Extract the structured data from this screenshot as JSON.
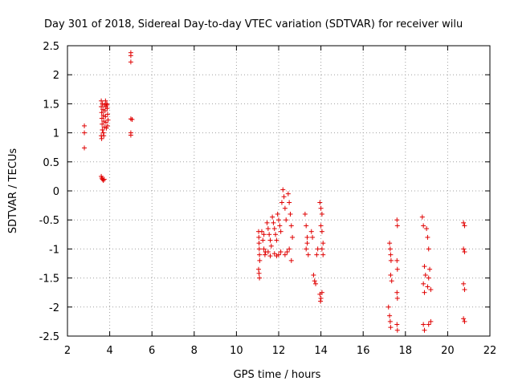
{
  "chart_data": {
    "type": "scatter",
    "title": "Day 301 of 2018, Sidereal Day-to-day VTEC variation (SDTVAR) for receiver wilu",
    "xlabel": "GPS time / hours",
    "ylabel": "SDTVAR / TECUs",
    "xlim": [
      2,
      22
    ],
    "ylim": [
      -2.5,
      2.5
    ],
    "grid": true,
    "marker": "plus",
    "color": "#e00000",
    "x_ticks": [
      2,
      4,
      6,
      8,
      10,
      12,
      14,
      16,
      18,
      20,
      22
    ],
    "y_ticks": [
      -2.5,
      -2,
      -1.5,
      -1,
      -0.5,
      0,
      0.5,
      1,
      1.5,
      2,
      2.5
    ],
    "x_tick_labels": [
      "2",
      "4",
      "6",
      "8",
      "10",
      "12",
      "14",
      "16",
      "18",
      "20",
      "22"
    ],
    "y_tick_labels": [
      "-2.5",
      "-2",
      "-1.5",
      "-1",
      "-0.5",
      "0",
      "0.5",
      "1",
      "1.5",
      "2",
      "2.5"
    ],
    "series": [
      {
        "name": "SDTVAR",
        "points": [
          [
            2.8,
            1.12
          ],
          [
            2.8,
            1.0
          ],
          [
            2.8,
            0.74
          ],
          [
            3.6,
            1.55
          ],
          [
            3.6,
            1.45
          ],
          [
            3.62,
            1.35
          ],
          [
            3.63,
            1.25
          ],
          [
            3.64,
            1.15
          ],
          [
            3.65,
            1.05
          ],
          [
            3.6,
            0.95
          ],
          [
            3.62,
            0.9
          ],
          [
            3.66,
            1.5
          ],
          [
            3.68,
            1.4
          ],
          [
            3.7,
            1.3
          ],
          [
            3.72,
            1.2
          ],
          [
            3.74,
            1.1
          ],
          [
            3.7,
            1.0
          ],
          [
            3.72,
            0.95
          ],
          [
            3.76,
            1.48
          ],
          [
            3.78,
            1.38
          ],
          [
            3.8,
            1.28
          ],
          [
            3.82,
            1.18
          ],
          [
            3.84,
            1.08
          ],
          [
            3.8,
            1.55
          ],
          [
            3.82,
            1.45
          ],
          [
            3.86,
            1.5
          ],
          [
            3.88,
            1.42
          ],
          [
            3.9,
            1.32
          ],
          [
            3.92,
            1.22
          ],
          [
            3.9,
            1.12
          ],
          [
            3.88,
            1.48
          ],
          [
            3.6,
            0.25
          ],
          [
            3.63,
            0.22
          ],
          [
            3.66,
            0.2
          ],
          [
            3.7,
            0.18
          ],
          [
            3.74,
            0.2
          ],
          [
            5.0,
            2.38
          ],
          [
            5.0,
            2.33
          ],
          [
            5.0,
            2.22
          ],
          [
            5.0,
            1.24
          ],
          [
            5.06,
            1.23
          ],
          [
            5.0,
            1.0
          ],
          [
            5.0,
            0.96
          ],
          [
            11.05,
            -0.7
          ],
          [
            11.06,
            -0.8
          ],
          [
            11.07,
            -0.9
          ],
          [
            11.08,
            -1.0
          ],
          [
            11.09,
            -1.1
          ],
          [
            11.1,
            -1.2
          ],
          [
            11.05,
            -1.35
          ],
          [
            11.07,
            -1.42
          ],
          [
            11.09,
            -1.5
          ],
          [
            11.2,
            -0.7
          ],
          [
            11.25,
            -0.85
          ],
          [
            11.3,
            -1.0
          ],
          [
            11.35,
            -1.1
          ],
          [
            11.3,
            -0.75
          ],
          [
            11.38,
            -1.05
          ],
          [
            11.45,
            -0.55
          ],
          [
            11.5,
            -0.65
          ],
          [
            11.55,
            -0.75
          ],
          [
            11.6,
            -0.85
          ],
          [
            11.65,
            -0.95
          ],
          [
            11.5,
            -1.05
          ],
          [
            11.6,
            -1.12
          ],
          [
            11.7,
            -0.45
          ],
          [
            11.75,
            -0.55
          ],
          [
            11.8,
            -0.65
          ],
          [
            11.85,
            -0.75
          ],
          [
            11.9,
            -0.85
          ],
          [
            11.8,
            -1.08
          ],
          [
            11.9,
            -1.12
          ],
          [
            11.95,
            -0.4
          ],
          [
            12.0,
            -0.5
          ],
          [
            12.05,
            -0.6
          ],
          [
            12.1,
            -0.7
          ],
          [
            12.0,
            -1.1
          ],
          [
            12.1,
            -1.05
          ],
          [
            12.15,
            -0.2
          ],
          [
            12.2,
            0.02
          ],
          [
            12.25,
            -0.1
          ],
          [
            12.3,
            -0.3
          ],
          [
            12.35,
            -0.5
          ],
          [
            12.3,
            -1.1
          ],
          [
            12.4,
            -1.05
          ],
          [
            12.45,
            -0.05
          ],
          [
            12.5,
            -0.2
          ],
          [
            12.55,
            -0.4
          ],
          [
            12.6,
            -0.6
          ],
          [
            12.65,
            -0.8
          ],
          [
            12.5,
            -1.0
          ],
          [
            12.6,
            -1.2
          ],
          [
            13.25,
            -0.4
          ],
          [
            13.3,
            -0.6
          ],
          [
            13.35,
            -0.8
          ],
          [
            13.3,
            -1.0
          ],
          [
            13.4,
            -1.1
          ],
          [
            13.35,
            -0.9
          ],
          [
            13.55,
            -0.7
          ],
          [
            13.6,
            -0.8
          ],
          [
            13.65,
            -1.45
          ],
          [
            13.7,
            -1.55
          ],
          [
            13.75,
            -1.6
          ],
          [
            13.8,
            -1.1
          ],
          [
            13.85,
            -1.0
          ],
          [
            13.95,
            -0.2
          ],
          [
            14.0,
            -0.3
          ],
          [
            14.05,
            -0.4
          ],
          [
            14.0,
            -0.6
          ],
          [
            14.05,
            -0.7
          ],
          [
            14.1,
            -0.9
          ],
          [
            14.05,
            -1.0
          ],
          [
            14.1,
            -1.1
          ],
          [
            13.95,
            -1.78
          ],
          [
            14.0,
            -1.85
          ],
          [
            14.05,
            -1.75
          ],
          [
            13.98,
            -1.9
          ],
          [
            17.25,
            -0.9
          ],
          [
            17.28,
            -1.0
          ],
          [
            17.3,
            -1.1
          ],
          [
            17.32,
            -1.2
          ],
          [
            17.3,
            -1.45
          ],
          [
            17.35,
            -1.55
          ],
          [
            17.2,
            -2.0
          ],
          [
            17.25,
            -2.15
          ],
          [
            17.28,
            -2.25
          ],
          [
            17.3,
            -2.35
          ],
          [
            17.6,
            -0.5
          ],
          [
            17.62,
            -0.6
          ],
          [
            17.6,
            -1.2
          ],
          [
            17.62,
            -1.35
          ],
          [
            17.6,
            -1.75
          ],
          [
            17.62,
            -1.85
          ],
          [
            17.6,
            -2.3
          ],
          [
            17.62,
            -2.4
          ],
          [
            18.8,
            -0.45
          ],
          [
            18.85,
            -0.6
          ],
          [
            18.9,
            -1.3
          ],
          [
            18.95,
            -1.45
          ],
          [
            18.85,
            -1.6
          ],
          [
            18.9,
            -1.75
          ],
          [
            18.85,
            -2.3
          ],
          [
            18.9,
            -2.4
          ],
          [
            19.0,
            -0.65
          ],
          [
            19.05,
            -0.8
          ],
          [
            19.1,
            -1.0
          ],
          [
            19.15,
            -1.35
          ],
          [
            19.1,
            -1.5
          ],
          [
            19.05,
            -1.65
          ],
          [
            19.2,
            -1.7
          ],
          [
            19.1,
            -2.3
          ],
          [
            19.2,
            -2.25
          ],
          [
            20.75,
            -0.55
          ],
          [
            20.8,
            -0.6
          ],
          [
            20.75,
            -1.0
          ],
          [
            20.8,
            -1.05
          ],
          [
            20.75,
            -1.6
          ],
          [
            20.8,
            -1.7
          ],
          [
            20.75,
            -2.2
          ],
          [
            20.8,
            -2.25
          ]
        ]
      }
    ]
  }
}
